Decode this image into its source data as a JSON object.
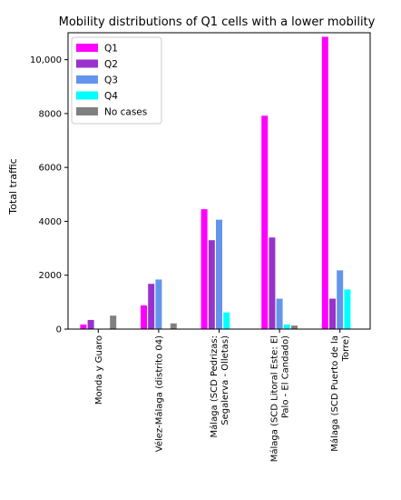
{
  "chart_data": {
    "type": "bar",
    "title": "Mobility distributions of Q1 cells with a lower mobility",
    "xlabel": "",
    "ylabel": "Total traffic",
    "ylim": [
      0,
      11000
    ],
    "yticks": [
      0,
      2000,
      4000,
      6000,
      8000,
      10000
    ],
    "ytick_labels": [
      "0",
      "2000",
      "4000",
      "6000",
      "8000",
      "10,000"
    ],
    "grid": false,
    "legend_position": "top-left",
    "categories": [
      "Monda y Guaro",
      "Vélez-Málaga (distrito 04)",
      "Málaga (SCD Pedrizas: Segalerva - Olletas)",
      "Málaga (SCD Litoral Este: El Palo - El Candado)",
      "Málaga (SCD Puerto de la Torre)"
    ],
    "category_lines": [
      [
        "Monda y Guaro"
      ],
      [
        "Vélez-Málaga (distrito 04)"
      ],
      [
        "Málaga (SCD Pedrizas:",
        "Segalerva - Olletas)"
      ],
      [
        "Málaga (SCD Litoral Este: El",
        "Palo - El Candado)"
      ],
      [
        "Málaga (SCD Puerto de la",
        "Torre)"
      ]
    ],
    "series": [
      {
        "name": "Q1",
        "color": "#ff00ff",
        "values": [
          170,
          880,
          4450,
          7920,
          10850
        ]
      },
      {
        "name": "Q2",
        "color": "#9932cc",
        "values": [
          340,
          1680,
          3300,
          3400,
          1130
        ]
      },
      {
        "name": "Q3",
        "color": "#6495ed",
        "values": [
          0,
          1840,
          4060,
          1130,
          2180
        ]
      },
      {
        "name": "Q4",
        "color": "#00ffff",
        "values": [
          0,
          0,
          620,
          170,
          1470
        ]
      },
      {
        "name": "No cases",
        "color": "#808080",
        "values": [
          500,
          210,
          0,
          130,
          0
        ]
      }
    ]
  }
}
